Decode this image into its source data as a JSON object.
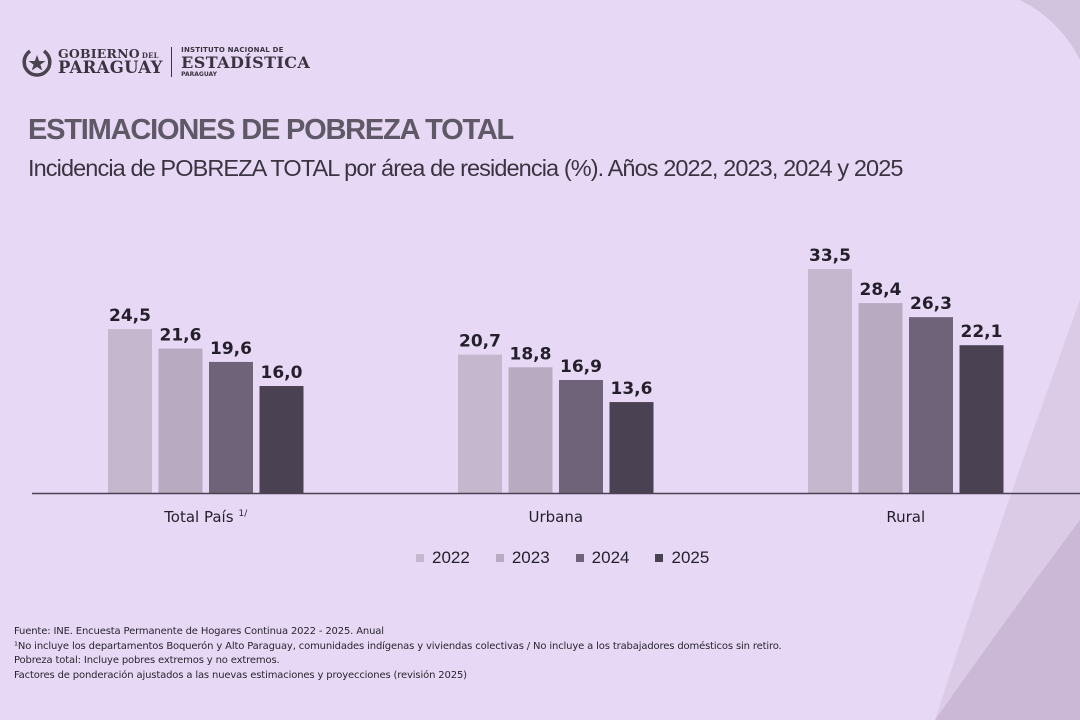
{
  "header": {
    "gobierno_line1": "GOBIERNO",
    "gobierno_del": "DEL",
    "gobierno_line2": "PARAGUAY",
    "ine_line1": "INSTITUTO NACIONAL DE",
    "ine_line2": "ESTADÍSTICA",
    "ine_line3": "PARAGUAY"
  },
  "title": "ESTIMACIONES DE POBREZA TOTAL",
  "subtitle": "Incidencia de POBREZA TOTAL  por área de residencia (%). Años 2022, 2023, 2024 y 2025",
  "colors": {
    "background": "#e7d9f5",
    "2022": "#c5b7cd",
    "2023": "#b8aac1",
    "2024": "#6f6379",
    "2025": "#4a4152",
    "axis": "#4a4152"
  },
  "chart_data": {
    "type": "bar",
    "title": "Incidencia de POBREZA TOTAL  por área de residencia (%). Años 2022, 2023, 2024 y 2025",
    "xlabel": "",
    "ylabel": "",
    "ylim": [
      0,
      35
    ],
    "grid": false,
    "legend_position": "bottom",
    "categories": [
      "Total País",
      "Urbana",
      "Rural"
    ],
    "category_superscripts": [
      "1/",
      "",
      ""
    ],
    "series": [
      {
        "name": "2022",
        "values": [
          24.5,
          20.7,
          33.5
        ],
        "labels": [
          "24,5",
          "20,7",
          "33,5"
        ]
      },
      {
        "name": "2023",
        "values": [
          21.6,
          18.8,
          28.4
        ],
        "labels": [
          "21,6",
          "18,8",
          "28,4"
        ]
      },
      {
        "name": "2024",
        "values": [
          19.6,
          16.9,
          26.3
        ],
        "labels": [
          "19,6",
          "16,9",
          "26,3"
        ]
      },
      {
        "name": "2025",
        "values": [
          16.0,
          13.6,
          22.1
        ],
        "labels": [
          "16,0",
          "13,6",
          "22,1"
        ]
      }
    ]
  },
  "footnotes": [
    "Fuente: INE. Encuesta Permanente de Hogares  Continua  2022 - 2025. Anual",
    "¹No incluye los departamentos  Boquerón  y Alto Paraguay,  comunidades  indígenas  y viviendas  colectivas / No incluye a los trabajadores  domésticos sin retiro.",
    "Pobreza total: Incluye pobres extremos y no extremos.",
    "Factores de ponderación  ajustados a las nuevas  estimaciones  y proyecciones  (revisión  2025)"
  ]
}
